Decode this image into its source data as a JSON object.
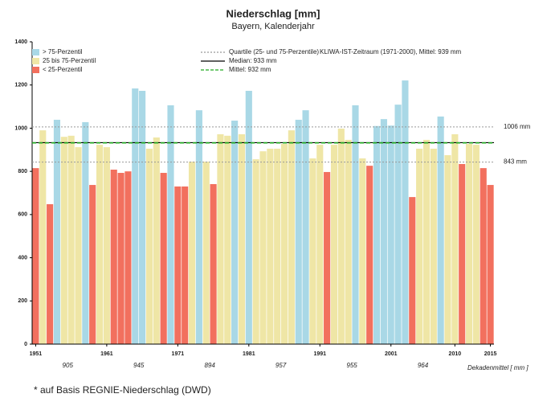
{
  "chart_data": {
    "type": "bar",
    "title": "Niederschlag [mm]",
    "subtitle": "Bayern, Kalenderjahr",
    "x": [
      1951,
      1952,
      1953,
      1954,
      1955,
      1956,
      1957,
      1958,
      1959,
      1960,
      1961,
      1962,
      1963,
      1964,
      1965,
      1966,
      1967,
      1968,
      1969,
      1970,
      1971,
      1972,
      1973,
      1974,
      1975,
      1976,
      1977,
      1978,
      1979,
      1980,
      1981,
      1982,
      1983,
      1984,
      1985,
      1986,
      1987,
      1988,
      1989,
      1990,
      1991,
      1992,
      1993,
      1994,
      1995,
      1996,
      1997,
      1998,
      1999,
      2000,
      2001,
      2002,
      2003,
      2004,
      2005,
      2006,
      2007,
      2008,
      2009,
      2010,
      2011,
      2012,
      2013,
      2014,
      2015
    ],
    "series": [
      {
        "name": "> 75-Perzentil",
        "color": "#a9d8e6",
        "values": [
          null,
          null,
          null,
          1039,
          null,
          null,
          null,
          1028,
          null,
          null,
          null,
          null,
          null,
          null,
          1184,
          1173,
          null,
          null,
          null,
          1106,
          null,
          null,
          null,
          1083,
          null,
          null,
          null,
          null,
          1035,
          null,
          1173,
          null,
          null,
          null,
          null,
          null,
          null,
          1039,
          1083,
          null,
          null,
          null,
          null,
          null,
          null,
          1106,
          null,
          null,
          1010,
          1042,
          1012,
          1109,
          1221,
          null,
          null,
          null,
          null,
          1054,
          null,
          null,
          null,
          null,
          null,
          null,
          null
        ]
      },
      {
        "name": "25 bis 75-Perzentil",
        "color": "#efe6a6",
        "values": [
          null,
          990,
          null,
          null,
          960,
          965,
          912,
          null,
          null,
          923,
          912,
          null,
          null,
          null,
          null,
          null,
          905,
          957,
          null,
          null,
          null,
          null,
          845,
          null,
          845,
          null,
          972,
          965,
          null,
          972,
          null,
          856,
          893,
          905,
          905,
          927,
          990,
          null,
          null,
          860,
          923,
          null,
          923,
          998,
          946,
          null,
          860,
          null,
          null,
          null,
          null,
          null,
          null,
          null,
          905,
          946,
          905,
          null,
          875,
          972,
          null,
          927,
          923,
          null,
          null
        ]
      },
      {
        "name": "< 25-Perzentil",
        "color": "#f2705e",
        "values": [
          815,
          null,
          648,
          null,
          null,
          null,
          null,
          null,
          737,
          null,
          null,
          808,
          793,
          800,
          null,
          null,
          null,
          null,
          793,
          null,
          730,
          730,
          null,
          null,
          null,
          741,
          null,
          null,
          null,
          null,
          null,
          null,
          null,
          null,
          null,
          null,
          null,
          null,
          null,
          null,
          null,
          797,
          null,
          null,
          null,
          null,
          null,
          826,
          null,
          null,
          null,
          null,
          null,
          681,
          null,
          null,
          null,
          null,
          null,
          null,
          834,
          null,
          null,
          815,
          737
        ]
      }
    ],
    "xlim": [
      1950.5,
      2015.5
    ],
    "xticks": [
      1951,
      1961,
      1971,
      1981,
      1991,
      2001,
      2010,
      2015
    ],
    "ylim": [
      0,
      1400
    ],
    "yticks": [
      0,
      200,
      400,
      600,
      800,
      1000,
      1200,
      1400
    ],
    "quartiles": {
      "name": "Quartile (25- und 75-Perzentile)",
      "values": [
        843,
        1006
      ],
      "value_labels": [
        "843 mm",
        "1006 mm"
      ],
      "color": "#999999"
    },
    "period_note": "KLIWA-IST-Zeitraum (1971-2000), Mittel: 939 mm",
    "median": {
      "name": "Median: 933 mm",
      "value": 933,
      "color": "#000000"
    },
    "mean": {
      "name": "Mittel: 932 mm",
      "value": 932,
      "color": "#22aa22"
    },
    "decade_means": [
      905,
      945,
      894,
      957,
      955,
      964
    ],
    "decade_label": "Dekadenmittel [ mm ]",
    "footnote": "* auf Basis REGNIE-Niederschlag (DWD)"
  }
}
